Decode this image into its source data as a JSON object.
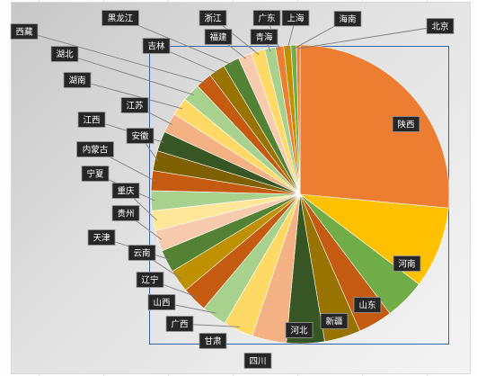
{
  "chart_data": {
    "type": "pie",
    "title": "",
    "categories": [
      "陕西",
      "河南",
      "山东",
      "新疆",
      "河北",
      "四川",
      "甘肃",
      "广西",
      "山西",
      "辽宁",
      "云南",
      "天津",
      "贵州",
      "重庆",
      "宁夏",
      "内蒙古",
      "安徽",
      "江西",
      "江苏",
      "湖南",
      "湖北",
      "西藏",
      "吉林",
      "黑龙江",
      "福建",
      "浙江",
      "青海",
      "广东",
      "上海",
      "海南",
      "北京"
    ],
    "values": [
      27.0,
      9.0,
      4.5,
      3.8,
      4.0,
      4.2,
      3.8,
      3.3,
      2.8,
      2.8,
      2.5,
      2.5,
      2.3,
      2.2,
      2.2,
      2.2,
      2.2,
      2.2,
      2.2,
      2.0,
      2.0,
      1.8,
      1.8,
      1.8,
      1.5,
      1.5,
      1.2,
      0.9,
      0.8,
      0.6,
      0.4
    ],
    "colors": [
      "#ED7D31",
      "#FFC000",
      "#70AD47",
      "#C55A11",
      "#997300",
      "#375623",
      "#F4B183",
      "#FFD966",
      "#A9D18E",
      "#C55A11",
      "#BF9000",
      "#548235",
      "#F8CBAD",
      "#FFE699",
      "#A9D18E",
      "#C55A11",
      "#7F6000",
      "#375623",
      "#F4B183",
      "#FFD966",
      "#A9D18E",
      "#C55A11",
      "#997300",
      "#548235",
      "#F8CBAD",
      "#FFD966",
      "#A9D18E",
      "#ED7D31",
      "#BF9000",
      "#70AD47",
      "#ED7D31"
    ],
    "legend": "none",
    "data_labels": "category-name"
  }
}
